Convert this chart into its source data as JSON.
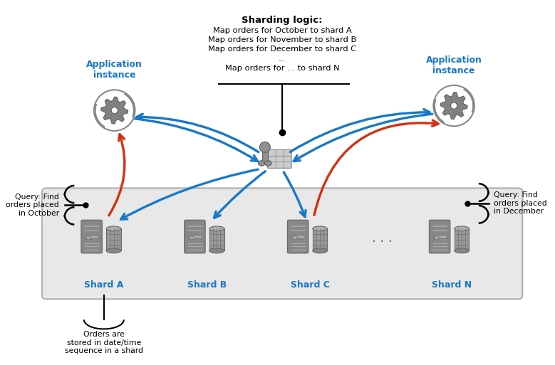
{
  "bg_color": "#ffffff",
  "shard_box_color": "#e8e8e8",
  "shard_box_edge": "#b0b0b0",
  "blue_color": "#1878c8",
  "red_color": "#d43010",
  "black_color": "#000000",
  "icon_gray": "#888888",
  "icon_dark": "#666666",
  "icon_light": "#aaaaaa",
  "sharding_logic_title": "Sharding logic:",
  "sharding_logic_lines": [
    "Map orders for October to shard A",
    "Map orders for November to shard B",
    "Map orders for December to shard C",
    "...",
    "Map orders for ... to shard N"
  ],
  "app_label": "Application\ninstance",
  "shard_labels": [
    "Shard A",
    "Shard B",
    "Shard C",
    "Shard N"
  ],
  "query_left": "Query: Find\norders placed\nin October",
  "query_right": "Query: Find\norders placed\nin December",
  "note_bottom": "Orders are\nstored in date/time\nsequence in a shard",
  "figw": 7.79,
  "figh": 5.13,
  "dpi": 100
}
